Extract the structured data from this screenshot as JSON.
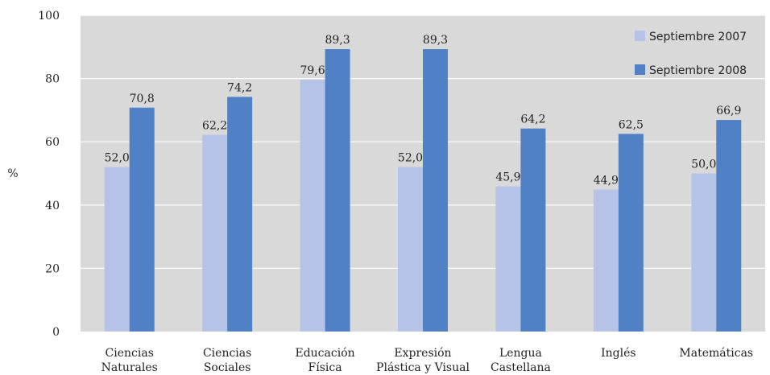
{
  "chart_data": {
    "type": "bar",
    "ylabel": "%",
    "ylim": [
      0,
      100
    ],
    "yticks": [
      0,
      20,
      40,
      60,
      80,
      100
    ],
    "grid": true,
    "legend_position": "top-right",
    "categories": [
      [
        "Ciencias",
        "Naturales"
      ],
      [
        "Ciencias",
        "Sociales"
      ],
      [
        "Educación",
        "Física"
      ],
      [
        "Expresión",
        "Plástica y Visual"
      ],
      [
        "Lengua",
        "Castellana"
      ],
      [
        "Inglés"
      ],
      [
        "Matemáticas"
      ]
    ],
    "series": [
      {
        "name": "Septiembre 2007",
        "color": "#b4c3e6",
        "values": [
          52.0,
          62.2,
          79.6,
          52.0,
          45.9,
          44.9,
          50.0
        ],
        "labels": [
          "52,0",
          "62,2",
          "79,6",
          "52,0",
          "45,9",
          "44,9",
          "50,0"
        ]
      },
      {
        "name": "Septiembre 2008",
        "color": "#4f81c4",
        "values": [
          70.8,
          74.2,
          89.3,
          89.3,
          64.2,
          62.5,
          66.9
        ],
        "labels": [
          "70,8",
          "74,2",
          "89,3",
          "89,3",
          "64,2",
          "62,5",
          "66,9"
        ]
      }
    ],
    "plot_background": "#d9d9d9",
    "gridline_color": "#ffffff"
  }
}
